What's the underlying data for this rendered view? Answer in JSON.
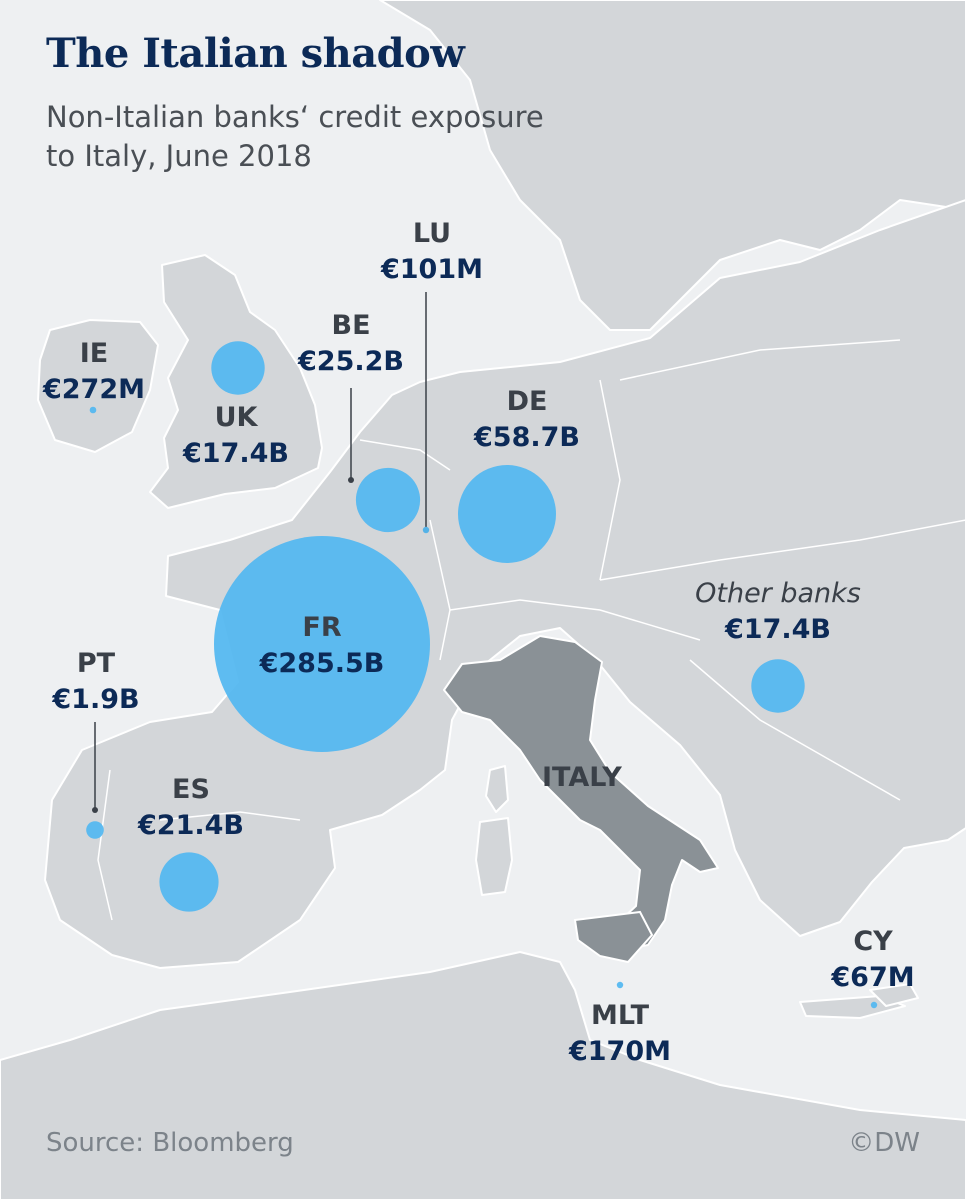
{
  "title": "The Italian shadow",
  "subtitle_line1": "Non-Italian banks‘ credit exposure",
  "subtitle_line2": "to Italy, June 2018",
  "map_label": "ITALY",
  "source": "Source: Bloomberg",
  "credit": "©DW",
  "colors": {
    "bubble": "#55b8f0",
    "italy": "#8a9196",
    "land": "#d3d6d9",
    "sea": "#eef0f2",
    "title": "#0c2a57",
    "value": "#0c2a57"
  },
  "chart_data": {
    "type": "bubble-map",
    "unit": "EUR",
    "points": [
      {
        "code": "IE",
        "label": "€272M",
        "value_millions": 272
      },
      {
        "code": "UK",
        "label": "€17.4B",
        "value_millions": 17400
      },
      {
        "code": "BE",
        "label": "€25.2B",
        "value_millions": 25200
      },
      {
        "code": "LU",
        "label": "€101M",
        "value_millions": 101
      },
      {
        "code": "DE",
        "label": "€58.7B",
        "value_millions": 58700
      },
      {
        "code": "FR",
        "label": "€285.5B",
        "value_millions": 285500
      },
      {
        "code": "PT",
        "label": "€1.9B",
        "value_millions": 1900
      },
      {
        "code": "ES",
        "label": "€21.4B",
        "value_millions": 21400
      },
      {
        "code": "Other banks",
        "label": "€17.4B",
        "value_millions": 17400
      },
      {
        "code": "MLT",
        "label": "€170M",
        "value_millions": 170
      },
      {
        "code": "CY",
        "label": "€67M",
        "value_millions": 67
      }
    ]
  }
}
